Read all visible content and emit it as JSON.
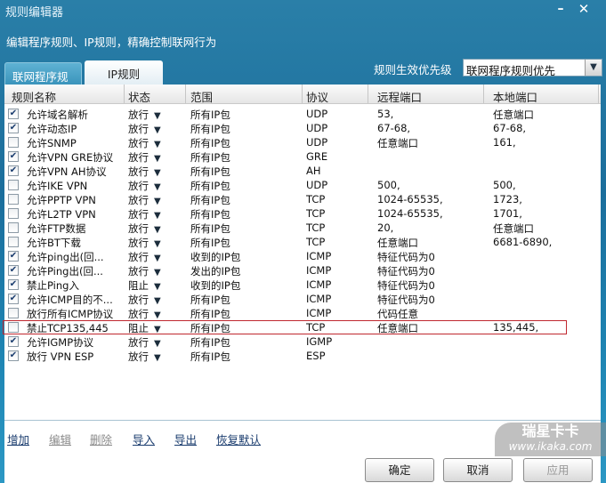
{
  "window": {
    "title": "规则编辑器",
    "subtitle": "编辑程序规则、IP规则，精确控制联网行为"
  },
  "tabs": [
    {
      "label": "联网程序规则",
      "active": false
    },
    {
      "label": "IP规则",
      "active": true
    }
  ],
  "priority": {
    "label": "规则生效优先级",
    "value": "联网程序规则优先"
  },
  "columns": [
    "规则名称",
    "状态",
    "范围",
    "协议",
    "远程端口",
    "本地端口"
  ],
  "rows": [
    {
      "checked": true,
      "name": "允许域名解析",
      "status": "放行",
      "scope": "所有IP包",
      "proto": "UDP",
      "remote": "53,",
      "local": "任意端口"
    },
    {
      "checked": true,
      "name": "允许动态IP",
      "status": "放行",
      "scope": "所有IP包",
      "proto": "UDP",
      "remote": "67-68,",
      "local": "67-68,"
    },
    {
      "checked": false,
      "name": "允许SNMP",
      "status": "放行",
      "scope": "所有IP包",
      "proto": "UDP",
      "remote": "任意端口",
      "local": "161,"
    },
    {
      "checked": true,
      "name": "允许VPN GRE协议",
      "status": "放行",
      "scope": "所有IP包",
      "proto": "GRE",
      "remote": "",
      "local": ""
    },
    {
      "checked": true,
      "name": "允许VPN AH协议",
      "status": "放行",
      "scope": "所有IP包",
      "proto": "AH",
      "remote": "",
      "local": ""
    },
    {
      "checked": false,
      "name": "允许IKE VPN",
      "status": "放行",
      "scope": "所有IP包",
      "proto": "UDP",
      "remote": "500,",
      "local": "500,"
    },
    {
      "checked": false,
      "name": "允许PPTP VPN",
      "status": "放行",
      "scope": "所有IP包",
      "proto": "TCP",
      "remote": "1024-65535,",
      "local": "1723,"
    },
    {
      "checked": false,
      "name": "允许L2TP VPN",
      "status": "放行",
      "scope": "所有IP包",
      "proto": "TCP",
      "remote": "1024-65535,",
      "local": "1701,"
    },
    {
      "checked": false,
      "name": "允许FTP数据",
      "status": "放行",
      "scope": "所有IP包",
      "proto": "TCP",
      "remote": "20,",
      "local": "任意端口"
    },
    {
      "checked": false,
      "name": "允许BT下载",
      "status": "放行",
      "scope": "所有IP包",
      "proto": "TCP",
      "remote": "任意端口",
      "local": "6681-6890,"
    },
    {
      "checked": true,
      "name": "允许ping出(回...",
      "status": "放行",
      "scope": "收到的IP包",
      "proto": "ICMP",
      "remote": "特征代码为0",
      "local": ""
    },
    {
      "checked": true,
      "name": "允许Ping出(回...",
      "status": "放行",
      "scope": "发出的IP包",
      "proto": "ICMP",
      "remote": "特征代码为0",
      "local": ""
    },
    {
      "checked": true,
      "name": "禁止Ping入",
      "status": "阻止",
      "scope": "收到的IP包",
      "proto": "ICMP",
      "remote": "特征代码为0",
      "local": ""
    },
    {
      "checked": true,
      "name": "允许ICMP目的不...",
      "status": "放行",
      "scope": "所有IP包",
      "proto": "ICMP",
      "remote": "特征代码为0",
      "local": ""
    },
    {
      "checked": false,
      "name": "放行所有ICMP协议",
      "status": "放行",
      "scope": "所有IP包",
      "proto": "ICMP",
      "remote": "代码任意",
      "local": ""
    },
    {
      "checked": false,
      "name": "禁止TCP135,445",
      "status": "阻止",
      "scope": "所有IP包",
      "proto": "TCP",
      "remote": "任意端口",
      "local": "135,445,",
      "highlighted": true
    },
    {
      "checked": true,
      "name": "允许IGMP协议",
      "status": "放行",
      "scope": "所有IP包",
      "proto": "IGMP",
      "remote": "",
      "local": ""
    },
    {
      "checked": true,
      "name": "放行 VPN ESP",
      "status": "放行",
      "scope": "所有IP包",
      "proto": "ESP",
      "remote": "",
      "local": ""
    }
  ],
  "actions": [
    {
      "label": "增加",
      "enabled": true
    },
    {
      "label": "编辑",
      "enabled": false
    },
    {
      "label": "删除",
      "enabled": false
    },
    {
      "label": "导入",
      "enabled": true
    },
    {
      "label": "导出",
      "enabled": true
    },
    {
      "label": "恢复默认",
      "enabled": true
    }
  ],
  "buttons": {
    "ok": "确定",
    "cancel": "取消",
    "apply": "应用"
  },
  "watermark": {
    "line1": "瑞星卡卡",
    "line2": "www.ikaka.com"
  },
  "colors": {
    "highlight": "#c0282f",
    "link": "#1a3c6e",
    "disabled": "#8a8a8a"
  }
}
